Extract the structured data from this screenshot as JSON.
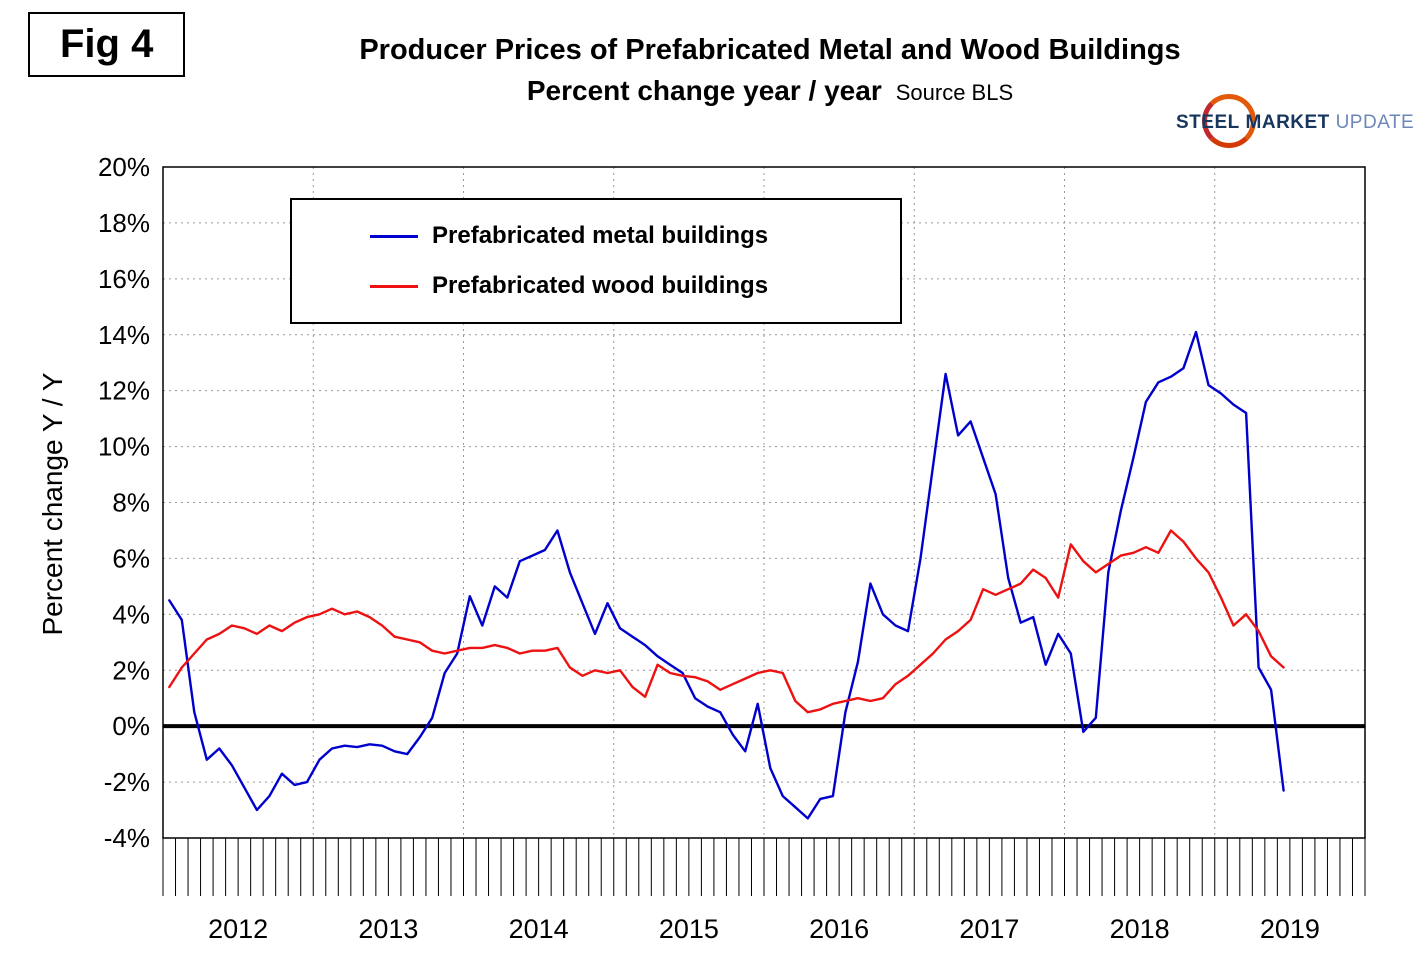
{
  "figure": {
    "label": "Fig 4"
  },
  "title": {
    "line1": "Producer Prices of Prefabricated Metal and Wood Buildings",
    "line2": "Percent change year / year",
    "source": "Source BLS"
  },
  "logo": {
    "steel": "STEEL",
    "market": "MARKET",
    "update": "UPDATE"
  },
  "chart_data": {
    "type": "line",
    "title": "Producer Prices of Prefabricated Metal and Wood Buildings, Percent change year / year",
    "source": "Source BLS",
    "ylabel": "Percent change Y / Y",
    "ylim": [
      -4,
      20
    ],
    "yticks": [
      20,
      18,
      16,
      14,
      12,
      10,
      8,
      6,
      4,
      2,
      0,
      -2,
      -4
    ],
    "ytick_labels": [
      "20%",
      "18%",
      "16%",
      "14%",
      "12%",
      "10%",
      "8%",
      "6%",
      "4%",
      "2%",
      "0%",
      "-2%",
      "-4%"
    ],
    "x_start": "2012-01",
    "frequency": "monthly",
    "x_year_labels": [
      "2012",
      "2013",
      "2014",
      "2015",
      "2016",
      "2017",
      "2018",
      "2019"
    ],
    "grid": "dotted",
    "zero_line": true,
    "legend_position": "top-left-inside",
    "series": [
      {
        "name": "Prefabricated metal buildings",
        "color": "#0000CC",
        "values": [
          4.5,
          3.8,
          0.5,
          -1.2,
          -0.8,
          -1.4,
          -2.2,
          -3.0,
          -2.5,
          -1.7,
          -2.1,
          -2.0,
          -1.2,
          -0.8,
          -0.7,
          -0.75,
          -0.65,
          -0.7,
          -0.9,
          -1.0,
          -0.4,
          0.3,
          1.9,
          2.6,
          4.65,
          3.6,
          5.0,
          4.6,
          5.9,
          6.1,
          6.3,
          7.0,
          5.5,
          4.4,
          3.3,
          4.4,
          3.5,
          3.2,
          2.9,
          2.5,
          2.2,
          1.9,
          1.0,
          0.7,
          0.5,
          -0.3,
          -0.9,
          0.8,
          -1.5,
          -2.5,
          -2.9,
          -3.3,
          -2.6,
          -2.5,
          0.5,
          2.3,
          5.1,
          4.0,
          3.6,
          3.4,
          6.0,
          9.3,
          12.6,
          10.4,
          10.9,
          9.6,
          8.3,
          5.3,
          3.7,
          3.9,
          2.2,
          3.3,
          2.6,
          -0.2,
          0.3,
          5.5,
          7.7,
          9.6,
          11.6,
          12.3,
          12.5,
          12.8,
          14.1,
          12.2,
          11.9,
          11.5,
          11.2,
          2.1,
          1.3,
          -2.3
        ]
      },
      {
        "name": "Prefabricated wood buildings",
        "color": "#EE1111",
        "values": [
          1.4,
          2.1,
          2.6,
          3.1,
          3.3,
          3.6,
          3.5,
          3.3,
          3.6,
          3.4,
          3.7,
          3.9,
          4.0,
          4.2,
          4.0,
          4.1,
          3.9,
          3.6,
          3.2,
          3.1,
          3.0,
          2.7,
          2.6,
          2.7,
          2.8,
          2.8,
          2.9,
          2.8,
          2.6,
          2.7,
          2.7,
          2.8,
          2.1,
          1.8,
          2.0,
          1.9,
          2.0,
          1.4,
          1.05,
          2.2,
          1.9,
          1.8,
          1.75,
          1.6,
          1.3,
          1.5,
          1.7,
          1.9,
          2.0,
          1.9,
          0.9,
          0.5,
          0.6,
          0.8,
          0.9,
          1.0,
          0.9,
          1.0,
          1.5,
          1.8,
          2.2,
          2.6,
          3.1,
          3.4,
          3.8,
          4.9,
          4.7,
          4.9,
          5.1,
          5.6,
          5.3,
          4.6,
          6.5,
          5.9,
          5.5,
          5.8,
          6.1,
          6.2,
          6.4,
          6.2,
          7.0,
          6.6,
          6.0,
          5.5,
          4.6,
          3.6,
          4.0,
          3.4,
          2.5,
          2.1
        ]
      }
    ]
  }
}
